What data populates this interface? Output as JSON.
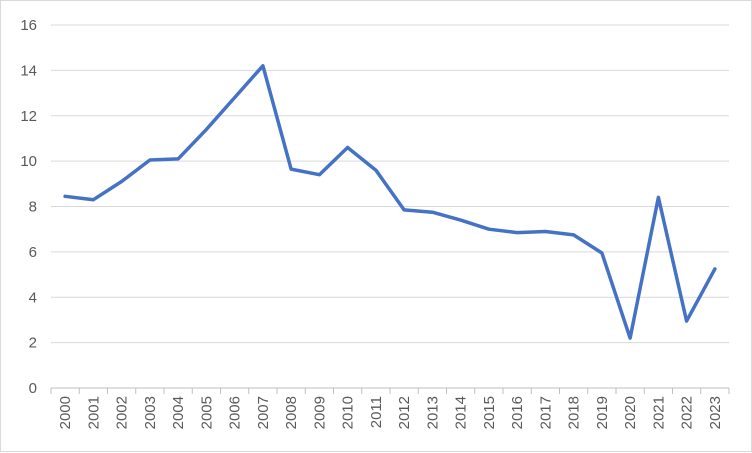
{
  "chart_data": {
    "type": "line",
    "title": "",
    "xlabel": "",
    "ylabel": "",
    "x": [
      "2000",
      "2001",
      "2002",
      "2003",
      "2004",
      "2005",
      "2006",
      "2007",
      "2008",
      "2009",
      "2010",
      "2011",
      "2012",
      "2013",
      "2014",
      "2015",
      "2016",
      "2017",
      "2018",
      "2019",
      "2020",
      "2021",
      "2022",
      "2023"
    ],
    "series": [
      {
        "values": [
          8.45,
          8.3,
          9.1,
          10.05,
          10.1,
          11.4,
          12.8,
          14.2,
          9.65,
          9.4,
          10.6,
          9.6,
          7.85,
          7.75,
          7.4,
          7.0,
          6.85,
          6.9,
          6.75,
          5.95,
          2.2,
          8.4,
          2.95,
          5.25
        ],
        "color": "#4472c4"
      }
    ],
    "ylim": [
      0,
      16
    ],
    "yticks": [
      "0",
      "2",
      "4",
      "6",
      "8",
      "10",
      "12",
      "14",
      "16"
    ],
    "grid": true,
    "legend": "none",
    "gridline_color": "#d9d9d9",
    "axis_line_color": "#bfbfbf"
  }
}
